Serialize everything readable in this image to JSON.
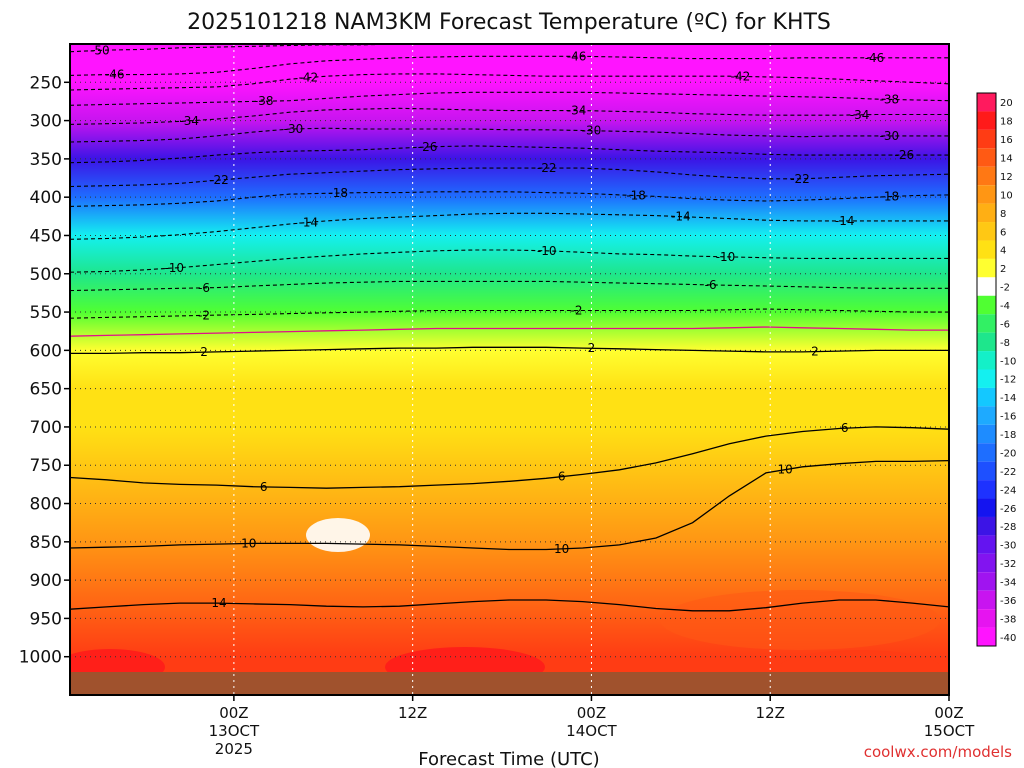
{
  "chart_data": {
    "type": "heatmap",
    "title": "2025101218 NAM3KM Forecast Temperature (ºC) for KHTS",
    "xlabel": "Forecast Time (UTC)",
    "ylabel": "",
    "credit": "coolwx.com/models",
    "y_range_hpa": [
      1050,
      200
    ],
    "y_ticks": [
      250,
      300,
      350,
      400,
      450,
      500,
      550,
      600,
      650,
      700,
      750,
      800,
      850,
      900,
      950,
      1000
    ],
    "x_range_hours": [
      -5,
      54
    ],
    "x_ticks": [
      {
        "hour": 6,
        "label": "00Z",
        "sub": "13OCT",
        "year": "2025"
      },
      {
        "hour": 18,
        "label": "12Z",
        "sub": "",
        "year": ""
      },
      {
        "hour": 30,
        "label": "00Z",
        "sub": "14OCT",
        "year": ""
      },
      {
        "hour": 42,
        "label": "12Z",
        "sub": "",
        "year": ""
      },
      {
        "hour": 54,
        "label": "00Z",
        "sub": "15OCT",
        "year": ""
      }
    ],
    "colorbar": {
      "levels": [
        20,
        18,
        16,
        14,
        12,
        10,
        8,
        6,
        4,
        2,
        -2,
        -4,
        -6,
        -8,
        -10,
        -12,
        -14,
        -16,
        -18,
        -20,
        -22,
        -24,
        -26,
        -28,
        -30,
        -32,
        -34,
        -36,
        -38,
        -40
      ],
      "colors": [
        "#ff1a5e",
        "#ff1a1a",
        "#ff3c14",
        "#ff5a14",
        "#ff7814",
        "#ff9614",
        "#ffaf14",
        "#ffc814",
        "#ffe114",
        "#ffff30",
        "#ffffff",
        "#50ff32",
        "#32f064",
        "#1ee68c",
        "#14f0c8",
        "#14f0f0",
        "#14c8ff",
        "#1eaaff",
        "#1e8cff",
        "#1e6eff",
        "#1e50ff",
        "#1e32ff",
        "#1414f0",
        "#3c14e6",
        "#6414f0",
        "#8214f0",
        "#a014f0",
        "#c814f0",
        "#e614f0",
        "#ff14ff"
      ]
    },
    "temperature_profile": [
      {
        "p": 200,
        "t": -52
      },
      {
        "p": 250,
        "t": -45
      },
      {
        "p": 300,
        "t": -35
      },
      {
        "p": 350,
        "t": -27
      },
      {
        "p": 400,
        "t": -19
      },
      {
        "p": 450,
        "t": -12
      },
      {
        "p": 500,
        "t": -8
      },
      {
        "p": 550,
        "t": -3
      },
      {
        "p": 600,
        "t": 2
      },
      {
        "p": 650,
        "t": 4
      },
      {
        "p": 700,
        "t": 5
      },
      {
        "p": 750,
        "t": 6
      },
      {
        "p": 800,
        "t": 8
      },
      {
        "p": 850,
        "t": 10
      },
      {
        "p": 900,
        "t": 12
      },
      {
        "p": 950,
        "t": 14
      },
      {
        "p": 1000,
        "t": 17
      }
    ],
    "contours": [
      {
        "value": -50,
        "label": "-50",
        "p": [
          210,
          208,
          207,
          205,
          204,
          203,
          202,
          201,
          201,
          200,
          200,
          200,
          200,
          200,
          200,
          200,
          200,
          200,
          200,
          200,
          200,
          200,
          200,
          200,
          200
        ],
        "labels": [
          {
            "hour": -3,
            "text": "-50"
          }
        ]
      },
      {
        "value": -46,
        "label": "-46",
        "p": [
          241,
          240,
          240,
          239,
          237,
          232,
          226,
          222,
          220,
          218,
          217,
          216,
          216,
          216,
          216,
          217,
          218,
          219,
          219,
          219,
          218,
          218,
          218,
          218,
          218
        ],
        "labels": [
          {
            "hour": -2,
            "text": "-46"
          },
          {
            "hour": 29,
            "text": "-46"
          },
          {
            "hour": 49,
            "text": "-46"
          }
        ]
      },
      {
        "value": -42,
        "label": "-42",
        "p": [
          260,
          259,
          258,
          257,
          256,
          252,
          246,
          242,
          240,
          239,
          239,
          240,
          241,
          242,
          242,
          242,
          242,
          242,
          242,
          243,
          244,
          246,
          248,
          250,
          252
        ],
        "labels": [
          {
            "hour": 11,
            "text": "-42"
          },
          {
            "hour": 40,
            "text": "-42"
          }
        ]
      },
      {
        "value": -38,
        "label": "-38",
        "p": [
          280,
          279,
          278,
          277,
          276,
          275,
          274,
          271,
          268,
          266,
          264,
          263,
          263,
          263,
          263,
          264,
          265,
          266,
          267,
          268,
          269,
          270,
          272,
          273,
          274
        ],
        "labels": [
          {
            "hour": 8,
            "text": "-38"
          },
          {
            "hour": 50,
            "text": "-38"
          }
        ]
      },
      {
        "value": -34,
        "label": "-34",
        "p": [
          305,
          304,
          303,
          301,
          298,
          294,
          289,
          286,
          285,
          284,
          285,
          286,
          287,
          287,
          287,
          288,
          289,
          291,
          292,
          293,
          293,
          293,
          292,
          292,
          292
        ],
        "labels": [
          {
            "hour": 3,
            "text": "-34"
          },
          {
            "hour": 29,
            "text": "-34"
          },
          {
            "hour": 48,
            "text": "-34"
          }
        ]
      },
      {
        "value": -30,
        "label": "-30",
        "p": [
          328,
          327,
          326,
          324,
          320,
          315,
          311,
          310,
          311,
          311,
          311,
          311,
          312,
          312,
          313,
          314,
          315,
          317,
          319,
          320,
          321,
          320,
          320,
          320,
          320
        ],
        "labels": [
          {
            "hour": 10,
            "text": "-30"
          },
          {
            "hour": 30,
            "text": "-30"
          },
          {
            "hour": 50,
            "text": "-30"
          }
        ]
      },
      {
        "value": -26,
        "label": "-26",
        "p": [
          355,
          354,
          352,
          349,
          345,
          342,
          340,
          339,
          338,
          336,
          334,
          333,
          334,
          335,
          336,
          338,
          340,
          341,
          342,
          344,
          345,
          345,
          345,
          345,
          345
        ],
        "labels": [
          {
            "hour": 19,
            "text": "-26"
          },
          {
            "hour": 51,
            "text": "-26"
          }
        ]
      },
      {
        "value": -22,
        "label": "-22",
        "p": [
          386,
          385,
          384,
          382,
          378,
          374,
          370,
          368,
          366,
          364,
          363,
          362,
          362,
          362,
          362,
          364,
          367,
          371,
          374,
          376,
          376,
          374,
          372,
          371,
          370
        ],
        "labels": [
          {
            "hour": 5,
            "text": "-22"
          },
          {
            "hour": 27,
            "text": "-22"
          },
          {
            "hour": 44,
            "text": "-22"
          }
        ]
      },
      {
        "value": -18,
        "label": "-18",
        "p": [
          412,
          411,
          410,
          408,
          405,
          400,
          396,
          395,
          394,
          394,
          393,
          393,
          393,
          394,
          395,
          397,
          399,
          402,
          404,
          405,
          404,
          402,
          400,
          398,
          397
        ],
        "labels": [
          {
            "hour": 13,
            "text": "-18"
          },
          {
            "hour": 33,
            "text": "-18"
          },
          {
            "hour": 50,
            "text": "-18"
          }
        ]
      },
      {
        "value": -14,
        "label": "-14",
        "p": [
          455,
          454,
          452,
          449,
          445,
          440,
          435,
          431,
          428,
          426,
          424,
          422,
          421,
          421,
          422,
          423,
          424,
          426,
          428,
          430,
          431,
          431,
          431,
          431,
          431
        ],
        "labels": [
          {
            "hour": 11,
            "text": "-14"
          },
          {
            "hour": 36,
            "text": "-14"
          },
          {
            "hour": 47,
            "text": "-14"
          }
        ]
      },
      {
        "value": -10,
        "label": "-10",
        "p": [
          498,
          497,
          495,
          492,
          488,
          484,
          480,
          477,
          474,
          472,
          470,
          469,
          469,
          470,
          472,
          474,
          475,
          477,
          478,
          479,
          480,
          480,
          480,
          480,
          480
        ],
        "labels": [
          {
            "hour": 2,
            "text": "-10"
          },
          {
            "hour": 27,
            "text": "-10"
          },
          {
            "hour": 39,
            "text": "-10"
          }
        ]
      },
      {
        "value": -6,
        "label": "-6",
        "p": [
          522,
          521,
          520,
          519,
          518,
          516,
          514,
          512,
          511,
          510,
          510,
          510,
          510,
          510,
          511,
          512,
          513,
          514,
          515,
          516,
          517,
          518,
          519,
          519,
          519
        ],
        "labels": [
          {
            "hour": 4,
            "text": "-6"
          },
          {
            "hour": 38,
            "text": "-6"
          }
        ]
      },
      {
        "value": -2,
        "label": "-2",
        "p": [
          558,
          557,
          556,
          555,
          554,
          553,
          552,
          551,
          550,
          549,
          548,
          548,
          548,
          548,
          548,
          548,
          548,
          548,
          547,
          546,
          547,
          548,
          549,
          550,
          550
        ],
        "labels": [
          {
            "hour": 4,
            "text": "-2"
          },
          {
            "hour": 29,
            "text": "-2"
          }
        ]
      },
      {
        "value": 2,
        "label": "2",
        "p": [
          604,
          604,
          603,
          603,
          602,
          601,
          600,
          599,
          598,
          597,
          597,
          596,
          596,
          596,
          597,
          598,
          599,
          600,
          601,
          602,
          602,
          601,
          600,
          600,
          600
        ],
        "labels": [
          {
            "hour": 4,
            "text": "2"
          },
          {
            "hour": 30,
            "text": "2"
          },
          {
            "hour": 45,
            "text": "2"
          }
        ]
      },
      {
        "value": 6,
        "label": "6",
        "p": [
          766,
          769,
          773,
          775,
          776,
          778,
          779,
          780,
          779,
          778,
          776,
          774,
          771,
          767,
          762,
          756,
          747,
          735,
          722,
          712,
          706,
          702,
          700,
          701,
          703
        ],
        "labels": [
          {
            "hour": 8,
            "text": "6"
          },
          {
            "hour": 28,
            "text": "6"
          },
          {
            "hour": 47,
            "text": "6"
          }
        ]
      },
      {
        "value": 10,
        "label": "10",
        "p": [
          858,
          857,
          856,
          854,
          853,
          852,
          852,
          852,
          853,
          854,
          856,
          858,
          860,
          860,
          858,
          854,
          845,
          825,
          790,
          760,
          752,
          748,
          745,
          745,
          744
        ],
        "labels": [
          {
            "hour": 7,
            "text": "10"
          },
          {
            "hour": 28,
            "text": "10"
          },
          {
            "hour": 43,
            "text": "10"
          }
        ]
      },
      {
        "value": 14,
        "label": "14",
        "p": [
          938,
          935,
          932,
          930,
          930,
          931,
          932,
          934,
          935,
          934,
          931,
          928,
          926,
          926,
          928,
          932,
          937,
          940,
          940,
          936,
          930,
          926,
          926,
          930,
          935
        ],
        "labels": [
          {
            "hour": 5,
            "text": "14"
          }
        ]
      }
    ]
  }
}
